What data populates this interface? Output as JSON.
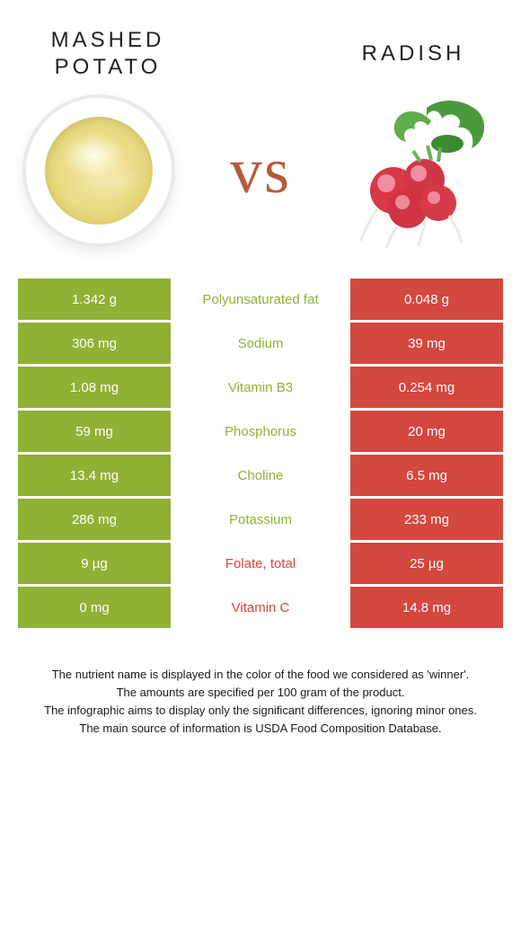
{
  "colors": {
    "left": "#8fb135",
    "right": "#d3483f",
    "label_left": "#8fb135",
    "label_right": "#d3483f",
    "white": "#ffffff"
  },
  "header": {
    "left_title_line1": "MASHED",
    "left_title_line2": "POTATO",
    "right_title": "RADISH",
    "vs_text": "vs"
  },
  "rows": [
    {
      "left": "1.342 g",
      "label": "Polyunsaturated fat",
      "right": "0.048 g",
      "winner": "left"
    },
    {
      "left": "306 mg",
      "label": "Sodium",
      "right": "39 mg",
      "winner": "left"
    },
    {
      "left": "1.08 mg",
      "label": "Vitamin B3",
      "right": "0.254 mg",
      "winner": "left"
    },
    {
      "left": "59 mg",
      "label": "Phosphorus",
      "right": "20 mg",
      "winner": "left"
    },
    {
      "left": "13.4 mg",
      "label": "Choline",
      "right": "6.5 mg",
      "winner": "left"
    },
    {
      "left": "286 mg",
      "label": "Potassium",
      "right": "233 mg",
      "winner": "left"
    },
    {
      "left": "9 µg",
      "label": "Folate, total",
      "right": "25 µg",
      "winner": "right"
    },
    {
      "left": "0 mg",
      "label": "Vitamin C",
      "right": "14.8 mg",
      "winner": "right"
    }
  ],
  "footer": [
    "The nutrient name is displayed in the color of the food we considered as 'winner'.",
    "The amounts are specified per 100 gram of the product.",
    "The infographic aims to display only the significant differences, ignoring minor ones.",
    "The main source of information is USDA Food Composition Database."
  ]
}
